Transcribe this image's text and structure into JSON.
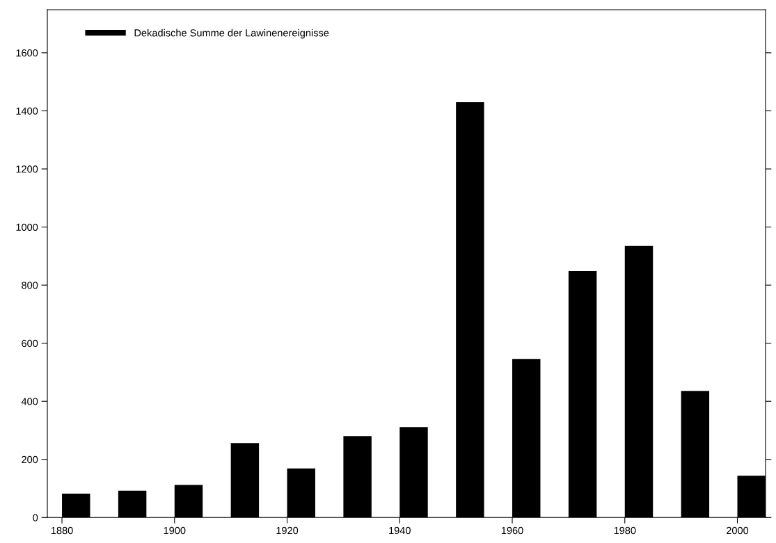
{
  "chart_data": {
    "type": "bar",
    "x": [
      1882.5,
      1892.5,
      1902.5,
      1912.5,
      1922.5,
      1932.5,
      1942.5,
      1952.5,
      1962.5,
      1972.5,
      1982.5,
      1992.5,
      2002.5
    ],
    "series": [
      {
        "name": "Dekadische Summe der Lawinenereignisse",
        "color": "#000000",
        "values": [
          82,
          92,
          112,
          256,
          169,
          280,
          311,
          1430,
          546,
          848,
          935,
          436,
          144
        ]
      }
    ],
    "xlim": [
      1877.4,
      2005
    ],
    "xticks": [
      1880,
      1900,
      1920,
      1940,
      1960,
      1980,
      2000
    ],
    "ylim": [
      0,
      1748
    ],
    "yticks": [
      0,
      200,
      400,
      600,
      800,
      1000,
      1200,
      1400,
      1600
    ],
    "grid": false,
    "legend": "top left"
  }
}
